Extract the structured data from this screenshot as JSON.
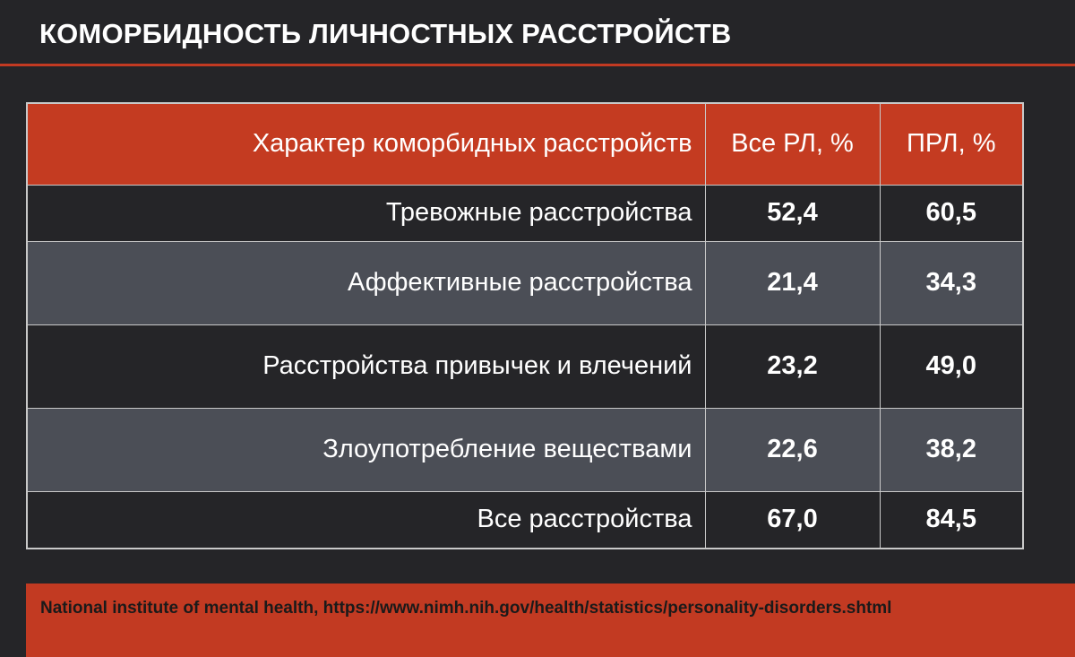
{
  "title": "КОМОРБИДНОСТЬ ЛИЧНОСТНЫХ РАССТРОЙСТВ",
  "table": {
    "headers": [
      "Характер коморбидных расстройств",
      "Все РЛ, %",
      "ПРЛ, %"
    ],
    "rows": [
      {
        "label": "Тревожные расстройства",
        "all_pd": "52,4",
        "bpd": "60,5"
      },
      {
        "label": "Аффективные расстройства",
        "all_pd": "21,4",
        "bpd": "34,3"
      },
      {
        "label": "Расстройства привычек и влечений",
        "all_pd": "23,2",
        "bpd": "49,0"
      },
      {
        "label": "Злоупотребление веществами",
        "all_pd": "22,6",
        "bpd": "38,2"
      },
      {
        "label": "Все расстройства",
        "all_pd": "67,0",
        "bpd": "84,5"
      }
    ]
  },
  "footer": {
    "source": "National institute of mental health, https://www.nimh.nih.gov/health/statistics/personality-disorders.shtml"
  },
  "colors": {
    "background": "#252528",
    "accent": "#c43b21",
    "row_alt": "#4b4e56",
    "text": "#ffffff"
  }
}
